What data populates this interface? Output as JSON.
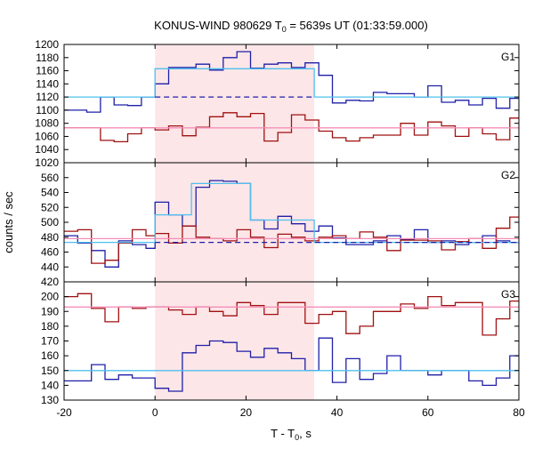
{
  "chart_data": {
    "type": "line",
    "title": "KONUS-WIND 980629 T",
    "title_sub": "0",
    "title_rest": " = 5639s UT (01:33:59.000)",
    "xlabel": "T - T",
    "xlabel_sub": "0",
    "xlabel_rest": ", s",
    "ylabel": "counts / sec",
    "xlim": [
      -20,
      80
    ],
    "x_ticks": [
      -20,
      0,
      20,
      40,
      60,
      80
    ],
    "highlight_interval": [
      0,
      35
    ],
    "colors": {
      "blue": "#1f1fa8",
      "red": "#a01010",
      "light_blue": "#4fc0ee",
      "pink": "#f58fb8",
      "shade": "#fde6e8"
    },
    "panels": [
      {
        "label": "G1",
        "ylim": [
          1020,
          1200
        ],
        "y_ticks": [
          1020,
          1040,
          1060,
          1080,
          1100,
          1120,
          1140,
          1160,
          1180,
          1200
        ],
        "series": [
          {
            "color": "blue",
            "x": [
              -20,
              -15,
              -12,
              -9,
              -6,
              -3,
              0,
              3,
              6,
              9,
              12,
              15,
              18,
              21,
              24,
              27,
              30,
              33,
              36,
              39,
              42,
              45,
              48,
              51,
              54,
              57,
              60,
              63,
              66,
              69,
              72,
              75,
              78,
              80
            ],
            "y": [
              1100,
              1097,
              1120,
              1108,
              1107,
              1120,
              1140,
              1165,
              1165,
              1170,
              1161,
              1180,
              1189,
              1164,
              1170,
              1172,
              1165,
              1172,
              1153,
              1111,
              1115,
              1114,
              1127,
              1125,
              1125,
              1120,
              1137,
              1112,
              1115,
              1108,
              1118,
              1103,
              1118,
              1118
            ]
          },
          {
            "color": "red",
            "x": [
              -20,
              -15,
              -12,
              -9,
              -6,
              -3,
              0,
              3,
              6,
              9,
              12,
              15,
              18,
              21,
              24,
              27,
              30,
              33,
              36,
              39,
              42,
              45,
              48,
              51,
              54,
              57,
              60,
              63,
              66,
              69,
              72,
              75,
              78,
              80
            ],
            "y": [
              1073,
              1073,
              1054,
              1052,
              1064,
              1073,
              1070,
              1076,
              1061,
              1074,
              1090,
              1096,
              1090,
              1095,
              1053,
              1066,
              1093,
              1085,
              1068,
              1058,
              1053,
              1058,
              1062,
              1062,
              1080,
              1062,
              1082,
              1076,
              1060,
              1073,
              1064,
              1055,
              1088,
              1088
            ]
          }
        ],
        "fit_lines": [
          {
            "color": "light_blue",
            "style": "solid",
            "segments": [
              [
                -20,
                1120
              ],
              [
                0,
                1120
              ],
              [
                0,
                1163
              ],
              [
                35,
                1163
              ],
              [
                35,
                1120
              ],
              [
                80,
                1120
              ]
            ]
          },
          {
            "color": "blue",
            "style": "dashed",
            "segments": [
              [
                0,
                1120
              ],
              [
                35,
                1120
              ]
            ]
          },
          {
            "color": "pink",
            "style": "solid",
            "segments": [
              [
                -20,
                1073
              ],
              [
                80,
                1073
              ]
            ]
          }
        ]
      },
      {
        "label": "G2",
        "ylim": [
          420,
          580
        ],
        "y_ticks": [
          420,
          440,
          460,
          480,
          500,
          520,
          540,
          560
        ],
        "series": [
          {
            "color": "blue",
            "x": [
              -20,
              -17,
              -14,
              -11,
              -8,
              -5,
              -2,
              0,
              3,
              6,
              9,
              12,
              15,
              18,
              21,
              24,
              27,
              30,
              33,
              36,
              39,
              42,
              45,
              48,
              51,
              54,
              57,
              60,
              63,
              66,
              69,
              72,
              75,
              78,
              80
            ],
            "y": [
              482,
              472,
              462,
              440,
              475,
              470,
              465,
              527,
              510,
              495,
              547,
              556,
              555,
              552,
              503,
              491,
              508,
              498,
              488,
              495,
              479,
              470,
              470,
              475,
              482,
              477,
              490,
              473,
              475,
              470,
              473,
              482,
              475,
              473,
              473
            ]
          },
          {
            "color": "red",
            "x": [
              -20,
              -17,
              -14,
              -11,
              -8,
              -5,
              -2,
              0,
              3,
              6,
              9,
              12,
              15,
              18,
              21,
              24,
              27,
              30,
              33,
              36,
              39,
              42,
              45,
              48,
              51,
              54,
              57,
              60,
              63,
              66,
              69,
              72,
              75,
              78,
              80
            ],
            "y": [
              488,
              490,
              445,
              449,
              472,
              490,
              482,
              485,
              472,
              495,
              480,
              478,
              475,
              490,
              480,
              466,
              484,
              480,
              475,
              480,
              482,
              478,
              487,
              480,
              462,
              476,
              476,
              475,
              463,
              474,
              478,
              465,
              492,
              507,
              507
            ]
          }
        ],
        "fit_lines": [
          {
            "color": "light_blue",
            "style": "solid",
            "segments": [
              [
                -20,
                473
              ],
              [
                0,
                473
              ],
              [
                0,
                510
              ],
              [
                8,
                510
              ],
              [
                8,
                552
              ],
              [
                21,
                552
              ],
              [
                21,
                503
              ],
              [
                35,
                503
              ],
              [
                35,
                473
              ],
              [
                80,
                473
              ]
            ]
          },
          {
            "color": "blue",
            "style": "dashed",
            "segments": [
              [
                0,
                473
              ],
              [
                80,
                473
              ]
            ]
          },
          {
            "color": "pink",
            "style": "solid",
            "segments": [
              [
                -20,
                478
              ],
              [
                80,
                478
              ]
            ]
          }
        ]
      },
      {
        "label": "G3",
        "ylim": [
          130,
          210
        ],
        "y_ticks": [
          130,
          140,
          150,
          160,
          170,
          180,
          190,
          200
        ],
        "series": [
          {
            "color": "blue",
            "x": [
              -20,
              -17,
              -14,
              -11,
              -8,
              -5,
              -2,
              0,
              3,
              6,
              9,
              12,
              15,
              18,
              21,
              24,
              27,
              30,
              33,
              36,
              39,
              42,
              45,
              48,
              51,
              54,
              57,
              60,
              63,
              66,
              69,
              72,
              75,
              78,
              80
            ],
            "y": [
              143,
              143,
              154,
              144,
              147,
              145,
              145,
              138,
              136,
              162,
              167,
              170,
              169,
              163,
              159,
              165,
              162,
              158,
              150,
              172,
              142,
              158,
              144,
              148,
              160,
              150,
              150,
              147,
              150,
              150,
              143,
              140,
              145,
              160,
              158
            ]
          },
          {
            "color": "red",
            "x": [
              -20,
              -17,
              -14,
              -11,
              -8,
              -5,
              -2,
              0,
              3,
              6,
              9,
              12,
              15,
              18,
              21,
              24,
              27,
              30,
              33,
              36,
              39,
              42,
              45,
              48,
              51,
              54,
              57,
              60,
              63,
              66,
              69,
              72,
              75,
              78,
              80
            ],
            "y": [
              200,
              202,
              192,
              183,
              193,
              192,
              193,
              193,
              191,
              188,
              193,
              190,
              187,
              196,
              194,
              188,
              196,
              196,
              182,
              188,
              190,
              175,
              180,
              190,
              190,
              195,
              192,
              200,
              194,
              196,
              196,
              174,
              185,
              197,
              182
            ]
          }
        ],
        "fit_lines": [
          {
            "color": "light_blue",
            "style": "solid",
            "segments": [
              [
                -20,
                150
              ],
              [
                80,
                150
              ]
            ]
          },
          {
            "color": "pink",
            "style": "solid",
            "segments": [
              [
                -20,
                193
              ],
              [
                80,
                193
              ]
            ]
          }
        ]
      }
    ]
  }
}
